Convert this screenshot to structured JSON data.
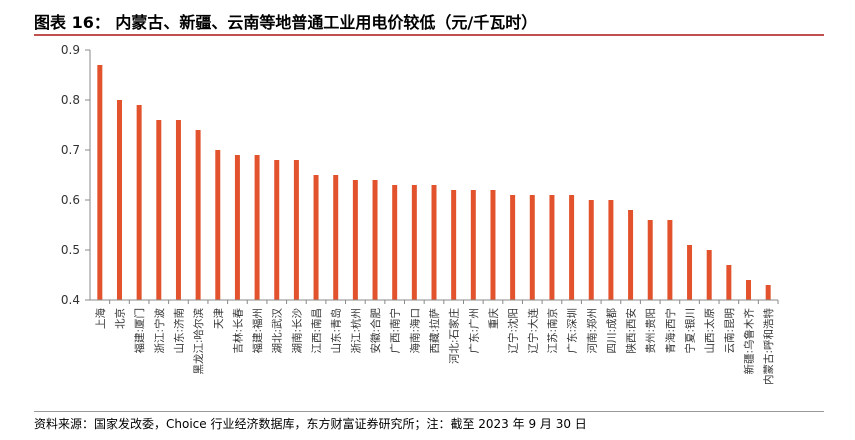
{
  "header": {
    "title": "图表 16：  内蒙古、新疆、云南等地普通工业用电价较低（元/千瓦时）"
  },
  "footer": {
    "source": "资料来源：国家发改委，Choice 行业经济数据库，东方财富证券研究所；注：截至 2023 年 9 月 30 日"
  },
  "colors": {
    "bar": "#E2532D",
    "axis": "#888888"
  },
  "chart_data": {
    "type": "bar",
    "title": "图表 16：  内蒙古、新疆、云南等地普通工业用电价较低（元/千瓦时）",
    "xlabel": "",
    "ylabel": "",
    "ylim": [
      0.4,
      0.9
    ],
    "yticks": [
      "0.4",
      "0.5",
      "0.6",
      "0.7",
      "0.8",
      "0.9"
    ],
    "grid": false,
    "categories": [
      "上海",
      "北京",
      "福建:厦门",
      "浙江:宁波",
      "山东:济南",
      "黑龙江:哈尔滨",
      "天津",
      "吉林:长春",
      "福建:福州",
      "湖北:武汉",
      "湖南:长沙",
      "江西:南昌",
      "山东:青岛",
      "浙江:杭州",
      "安徽:合肥",
      "广西:南宁",
      "海南:海口",
      "西藏:拉萨",
      "河北:石家庄",
      "广东:广州",
      "重庆",
      "辽宁:沈阳",
      "辽宁:大连",
      "江苏:南京",
      "广东:深圳",
      "河南:郑州",
      "四川:成都",
      "陕西:西安",
      "贵州:贵阳",
      "青海:西宁",
      "宁夏:银川",
      "山西:太原",
      "云南:昆明",
      "新疆:乌鲁木齐",
      "内蒙古:呼和浩特"
    ],
    "values": [
      0.87,
      0.8,
      0.79,
      0.76,
      0.76,
      0.74,
      0.7,
      0.69,
      0.69,
      0.68,
      0.68,
      0.65,
      0.65,
      0.64,
      0.64,
      0.63,
      0.63,
      0.63,
      0.62,
      0.62,
      0.62,
      0.61,
      0.61,
      0.61,
      0.61,
      0.6,
      0.6,
      0.58,
      0.56,
      0.56,
      0.51,
      0.5,
      0.47,
      0.44,
      0.43
    ]
  }
}
